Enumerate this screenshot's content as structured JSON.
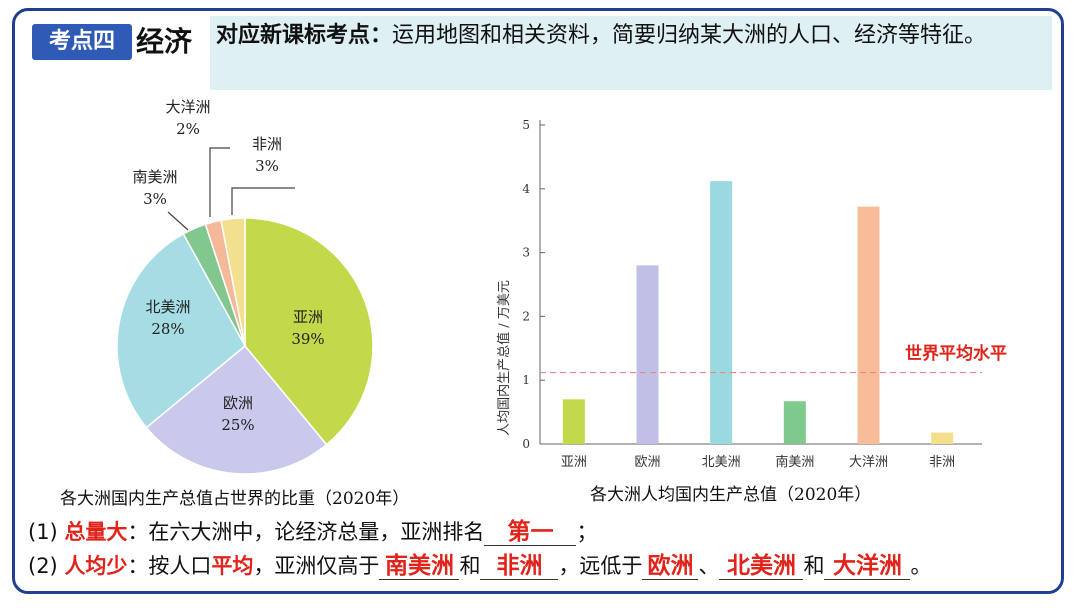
{
  "header": {
    "tag": "考点四",
    "topic": "经济",
    "requirement_label": "对应新课标考点：",
    "requirement_text": "运用地图和相关资料，简要归纳某大洲的人口、经济等特征。"
  },
  "pie": {
    "caption": "各大洲国内生产总值占世界的比重（2020年）",
    "slices": [
      {
        "name": "亚洲",
        "pct": "39%",
        "value": 39,
        "color": "#c3d94a"
      },
      {
        "name": "欧洲",
        "pct": "25%",
        "value": 25,
        "color": "#c9c9ec"
      },
      {
        "name": "北美洲",
        "pct": "28%",
        "value": 28,
        "color": "#a6dde4"
      },
      {
        "name": "南美洲",
        "pct": "3%",
        "value": 3,
        "color": "#82c88e"
      },
      {
        "name": "大洋洲",
        "pct": "2%",
        "value": 2,
        "color": "#f4b998"
      },
      {
        "name": "非洲",
        "pct": "3%",
        "value": 3,
        "color": "#f3e08e"
      }
    ]
  },
  "chart_data": {
    "type": "bar",
    "title": "各大洲人均国内生产总值（2020年）",
    "ylabel": "人均国内生产总值 / 万美元",
    "categories": [
      "亚洲",
      "欧洲",
      "北美洲",
      "南美洲",
      "大洋洲",
      "非洲"
    ],
    "values": [
      0.7,
      2.8,
      4.12,
      0.67,
      3.72,
      0.18
    ],
    "colors": [
      "#c3d94a",
      "#c0c0e6",
      "#9ad9df",
      "#80c98d",
      "#f8bd98",
      "#f4df8f"
    ],
    "ylim": [
      0,
      5
    ],
    "yticks": [
      "0",
      "1",
      "2",
      "3",
      "4",
      "5"
    ],
    "reference_line": {
      "label": "世界平均水平",
      "value": 1.12,
      "color": "#e0241b"
    }
  },
  "questions": {
    "q1": {
      "num": "(1)",
      "key": "总量大",
      "text": "：在六大洲中，论经济总量，亚洲排名",
      "answer": "第一",
      "end": "；"
    },
    "q2": {
      "num": "(2)",
      "key": "人均少",
      "text1": "：按人口",
      "highlight": "平均",
      "text2": "，亚洲仅高于",
      "a1": "南美洲",
      "and1": "和",
      "a2": "非洲",
      "text3": "，远低于",
      "a3": "欧洲",
      "sep": "、",
      "a4": "北美洲",
      "and2": "和",
      "a5": "大洋洲",
      "end": "。"
    }
  }
}
